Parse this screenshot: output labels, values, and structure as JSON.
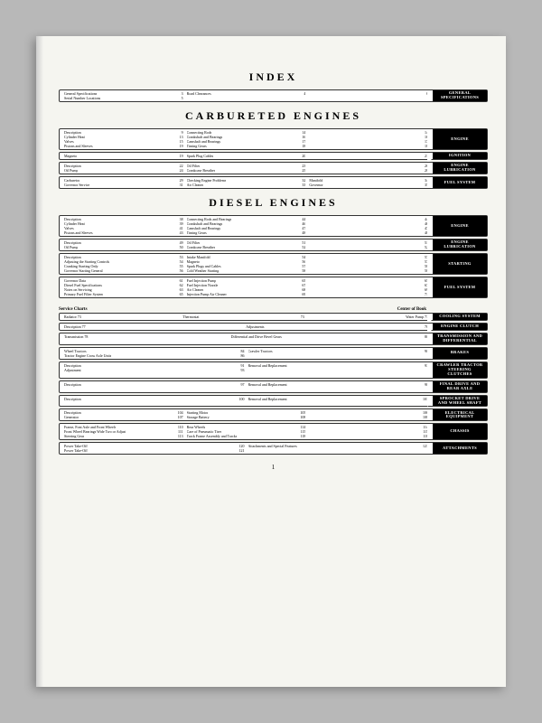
{
  "titles": {
    "index": "INDEX",
    "carb": "CARBURETED ENGINES",
    "diesel": "DIESEL ENGINES"
  },
  "pageNumber": "1",
  "serviceChartsLabel": "SERVICE CHARTS",
  "centerOfBookLabel": "Center of Book",
  "index": {
    "c1": [
      [
        "General Specifications",
        "3"
      ],
      [
        "Serial Number Locations",
        "5"
      ]
    ],
    "c2": [
      [
        "Road Clearances",
        "4"
      ]
    ],
    "c3": [
      [
        "",
        "6"
      ]
    ],
    "tab": "GENERAL\nSPECIFICATIONS"
  },
  "carb": [
    {
      "c1": [
        [
          "Description",
          "9"
        ],
        [
          "Cylinder Head",
          "13"
        ],
        [
          "Valves",
          "15"
        ],
        [
          "Pistons and Sleeves",
          "19"
        ]
      ],
      "c2": [
        [
          "Connecting Rods",
          "14"
        ],
        [
          "Crankshaft and Bearings",
          "16"
        ],
        [
          "Camshaft and Bearings",
          "17"
        ],
        [
          "Timing Gears",
          "18"
        ]
      ],
      "c3": [
        [
          "",
          "14"
        ],
        [
          "",
          "16"
        ],
        [
          "",
          "17"
        ],
        [
          "",
          "18"
        ]
      ],
      "tab": "ENGINE"
    },
    {
      "c1": [
        [
          "Magneto",
          "19"
        ]
      ],
      "c2": [
        [
          "Spark Plug Cables",
          "20"
        ]
      ],
      "c3": [
        [
          "",
          "21"
        ]
      ],
      "tab": "IGNITION"
    },
    {
      "c1": [
        [
          "Description",
          "22"
        ],
        [
          "Oil Pump",
          "24"
        ]
      ],
      "c2": [
        [
          "Oil Filter",
          "23"
        ],
        [
          "Crankcase Breather",
          "25"
        ]
      ],
      "c3": [
        [
          "",
          "26"
        ],
        [
          "",
          "28"
        ]
      ],
      "tab": "ENGINE\nLUBRICATION"
    },
    {
      "c1": [
        [
          "Carburetor",
          "29"
        ],
        [
          "Governor Service",
          "31"
        ]
      ],
      "c2": [
        [
          "Checking Engine Problems",
          "32"
        ],
        [
          "Air Cleaner",
          "33"
        ]
      ],
      "c3": [
        [
          "Manifold",
          "34"
        ],
        [
          "Governor",
          "35"
        ]
      ],
      "tab": "FUEL SYSTEM"
    }
  ],
  "diesel": [
    {
      "c1": [
        [
          "Description",
          "38"
        ],
        [
          "Cylinder Head",
          "39"
        ],
        [
          "Valves",
          "41"
        ],
        [
          "Pistons and Sleeves",
          "43"
        ]
      ],
      "c2": [
        [
          "Connecting Rods and Bearings",
          "44"
        ],
        [
          "Crankshaft and Bearings",
          "46"
        ],
        [
          "Camshaft and Bearings",
          "47"
        ],
        [
          "Timing Gears",
          "48"
        ]
      ],
      "c3": [
        [
          "",
          "44"
        ],
        [
          "",
          "46"
        ],
        [
          "",
          "47"
        ],
        [
          "",
          "48"
        ]
      ],
      "tab": "ENGINE"
    },
    {
      "c1": [
        [
          "Description",
          "49"
        ],
        [
          "Oil Pump",
          "50"
        ]
      ],
      "c2": [
        [
          "Oil Filter",
          "51"
        ],
        [
          "Crankcase Breather",
          "52"
        ]
      ],
      "c3": [
        [
          "",
          "51"
        ],
        [
          "",
          "52"
        ]
      ],
      "tab": "ENGINE\nLUBRICATION"
    },
    {
      "c1": [
        [
          "Description",
          "53"
        ],
        [
          "Adjusting the Starting Controls",
          "54"
        ],
        [
          "Cranking Starting Only",
          "55"
        ],
        [
          "Governor Starting General",
          "56"
        ]
      ],
      "c2": [
        [
          "Intake Manifold",
          "54"
        ],
        [
          "Magneto",
          "56"
        ],
        [
          "Spark Plugs and Cables",
          "57"
        ],
        [
          "Cold Weather Starting",
          "58"
        ]
      ],
      "c3": [
        [
          "",
          "57"
        ],
        [
          "",
          "57"
        ],
        [
          "",
          "58"
        ],
        [
          "",
          "58"
        ]
      ],
      "tab": "STARTING"
    },
    {
      "c1": [
        [
          "Governor Data",
          "61"
        ],
        [
          "Diesel Fuel Specifications",
          "62"
        ],
        [
          "Notes on Servicing",
          "63"
        ],
        [
          "Primary Fuel Filter System",
          "65"
        ]
      ],
      "c2": [
        [
          "Fuel Injection Pump",
          "65"
        ],
        [
          "Fuel Injection Nozzle",
          "67"
        ],
        [
          "Air Cleaner",
          "68"
        ],
        [
          "Injection Pump Air Cleaner",
          "69"
        ]
      ],
      "c3": [
        [
          "",
          "65"
        ],
        [
          "",
          "67"
        ],
        [
          "",
          "69"
        ],
        [
          "",
          "71"
        ]
      ],
      "tab": "FUEL SYSTEM"
    }
  ],
  "service": [
    {
      "text": "Service Charts",
      "tab": "SERVICE CHARTS",
      "cob": true
    },
    {
      "c1": [
        [
          "Radiator",
          "73"
        ],
        [
          "",
          "Thermostat"
        ],
        [
          "",
          "73"
        ],
        [
          "Water Pump",
          "73"
        ]
      ],
      "tab": "COOLING SYSTEM",
      "single": true
    },
    {
      "c1": [
        [
          "Description",
          "77"
        ],
        [
          "",
          "Adjustments"
        ],
        [
          "",
          "78"
        ]
      ],
      "tab": "ENGINE CLUTCH",
      "single": true
    },
    {
      "c1": [
        [
          "Transmission",
          "78"
        ],
        [
          "",
          "Differential and Drive Bevel Gears"
        ],
        [
          "",
          "80"
        ]
      ],
      "tab": "TRANSMISSION AND\nDIFFERENTIAL",
      "single": true
    },
    {
      "c1": [
        [
          "Wheel Tractors",
          "84"
        ],
        [
          "Tractor Engine Cross Axle Units",
          "86"
        ]
      ],
      "c2": [
        [
          "Crawler Tractors",
          "90"
        ]
      ],
      "tab": "BRAKES"
    },
    {
      "c1": [
        [
          "Description",
          "91"
        ],
        [
          "Adjustment",
          "93"
        ]
      ],
      "c2": [
        [
          "Removal and Replacement",
          "93"
        ]
      ],
      "tab": "CRAWLER TRACTOR\nSTEERING CLUTCHES"
    },
    {
      "c1": [
        [
          "Description",
          "97"
        ]
      ],
      "c2": [
        [
          "Removal and Replacement",
          "98"
        ]
      ],
      "tab": "FINAL DRIVE AND\nREAR AXLE"
    },
    {
      "c1": [
        [
          "Description",
          "100"
        ]
      ],
      "c2": [
        [
          "Removal and Replacement",
          "101"
        ]
      ],
      "tab": "SPROCKET DRIVE AND\nWHEEL SHAFT"
    },
    {
      "c1": [
        [
          "Description",
          "104"
        ],
        [
          "Generator",
          "107"
        ]
      ],
      "c2": [
        [
          "Starting Motor",
          "105"
        ],
        [
          "Storage Battery",
          "108"
        ]
      ],
      "c3": [
        [
          "",
          "106"
        ],
        [
          "",
          "108"
        ]
      ],
      "tab": "ELECTRICAL\nEQUIPMENT"
    },
    {
      "c1": [
        [
          "Frame, Font Axle and Front Wheels",
          "110"
        ],
        [
          "Front Wheel Bearings Wide Two or Adjust",
          "111"
        ],
        [
          "Steering Gear",
          "113"
        ]
      ],
      "c2": [
        [
          "Rear Wheels",
          "114"
        ],
        [
          "Care of Pneumatic Tires",
          "115"
        ],
        [
          "Track Frame Assembly and Tracks",
          "118"
        ]
      ],
      "c3": [
        [
          "",
          "114"
        ],
        [
          "",
          "115"
        ],
        [
          "",
          "118"
        ]
      ],
      "tab": "CHASSIS"
    },
    {
      "c1": [
        [
          "Power Take-Off",
          "120"
        ],
        [
          "Power Take-Off",
          "121"
        ]
      ],
      "c2": [
        [
          "Attachments and Special Features",
          "123"
        ]
      ],
      "tab": "ATTACHMENTS"
    }
  ]
}
